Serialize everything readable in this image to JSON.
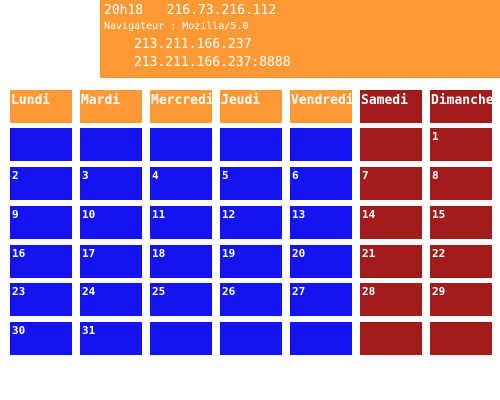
{
  "info": {
    "time": "20h18",
    "ip_primary": "216.73.216.112",
    "navigator_label": "Navigateur : Mozilla/5.0",
    "ip_secondary": "213.211.166.237",
    "ip_with_port": "213.211.166.237:8888"
  },
  "calendar": {
    "headers": [
      "Lundi",
      "Mardi",
      "Mercredi",
      "Jeudi",
      "Vendredi",
      "Samedi",
      "Dimanche"
    ],
    "weeks": [
      [
        "",
        "",
        "",
        "",
        "",
        "",
        "1"
      ],
      [
        "2",
        "3",
        "4",
        "5",
        "6",
        "7",
        "8"
      ],
      [
        "9",
        "10",
        "11",
        "12",
        "13",
        "14",
        "15"
      ],
      [
        "16",
        "17",
        "18",
        "19",
        "20",
        "21",
        "22"
      ],
      [
        "23",
        "24",
        "25",
        "26",
        "27",
        "28",
        "29"
      ],
      [
        "30",
        "31",
        "",
        "",
        "",
        "",
        ""
      ]
    ]
  },
  "colors": {
    "header_weekday": "#ff9933",
    "header_weekend": "#a31c1c",
    "cell_weekday": "#1414f0",
    "cell_weekend": "#a31c1c",
    "text": "#ffffff"
  }
}
